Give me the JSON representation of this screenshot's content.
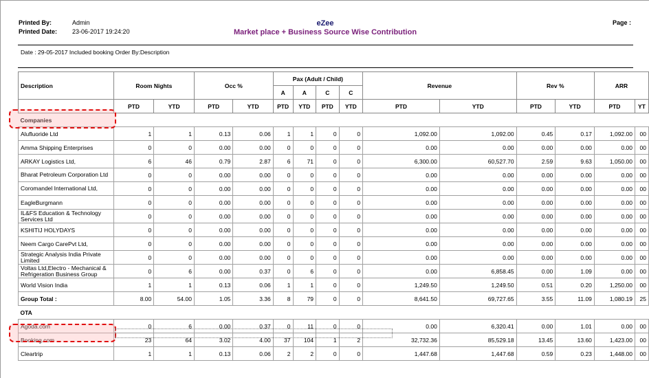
{
  "header": {
    "printed_by_label": "Printed By:",
    "printed_by": "Admin",
    "printed_date_label": "Printed Date:",
    "printed_date": "23-06-2017 19:24:20",
    "company": "eZee",
    "report_title": "Market place + Business Source Wise Contribution",
    "page_label": "Page :",
    "date_line": "Date : 29-05-2017 Included booking Order By:Description"
  },
  "table": {
    "pax_header": "Pax (Adult / Child)",
    "columns": {
      "description": "Description",
      "room_nights": "Room Nights",
      "occ": "Occ %",
      "a1": "A",
      "a2": "A",
      "c1": "C",
      "c2": "C",
      "revenue": "Revenue",
      "rev_pct": "Rev %",
      "arr": "ARR"
    },
    "sub": [
      "PTD",
      "YTD",
      "PTD",
      "YTD",
      "PTD",
      "YTD",
      "PTD",
      "YTD",
      "PTD",
      "YTD",
      "PTD",
      "YTD",
      "PTD",
      "YT"
    ],
    "sections": {
      "companies": "Companies",
      "ota": "OTA"
    },
    "companies_rows": [
      [
        "Alufluoride Ltd",
        "1",
        "1",
        "0.13",
        "0.06",
        "1",
        "1",
        "0",
        "0",
        "1,092.00",
        "1,092.00",
        "0.45",
        "0.17",
        "1,092.00",
        "00"
      ],
      [
        "Amma Shipping Enterprises",
        "0",
        "0",
        "0.00",
        "0.00",
        "0",
        "0",
        "0",
        "0",
        "0.00",
        "0.00",
        "0.00",
        "0.00",
        "0.00",
        "00"
      ],
      [
        "ARKAY Logistics Ltd,",
        "6",
        "46",
        "0.79",
        "2.87",
        "6",
        "71",
        "0",
        "0",
        "6,300.00",
        "60,527.70",
        "2.59",
        "9.63",
        "1,050.00",
        "00"
      ],
      [
        "Bharat Petroleum Corporation Ltd",
        "0",
        "0",
        "0.00",
        "0.00",
        "0",
        "0",
        "0",
        "0",
        "0.00",
        "0.00",
        "0.00",
        "0.00",
        "0.00",
        "00"
      ],
      [
        "Coromandel International Ltd,",
        "0",
        "0",
        "0.00",
        "0.00",
        "0",
        "0",
        "0",
        "0",
        "0.00",
        "0.00",
        "0.00",
        "0.00",
        "0.00",
        "00"
      ],
      [
        "EagleBurgmann",
        "0",
        "0",
        "0.00",
        "0.00",
        "0",
        "0",
        "0",
        "0",
        "0.00",
        "0.00",
        "0.00",
        "0.00",
        "0.00",
        "00"
      ],
      [
        "IL&FS Education & Technology Services Ltd",
        "0",
        "0",
        "0.00",
        "0.00",
        "0",
        "0",
        "0",
        "0",
        "0.00",
        "0.00",
        "0.00",
        "0.00",
        "0.00",
        "00"
      ],
      [
        "KSHITIJ HOLYDAYS",
        "0",
        "0",
        "0.00",
        "0.00",
        "0",
        "0",
        "0",
        "0",
        "0.00",
        "0.00",
        "0.00",
        "0.00",
        "0.00",
        "00"
      ],
      [
        "Neem Cargo CarePvt Ltd,",
        "0",
        "0",
        "0.00",
        "0.00",
        "0",
        "0",
        "0",
        "0",
        "0.00",
        "0.00",
        "0.00",
        "0.00",
        "0.00",
        "00"
      ],
      [
        "Strategic Analysis India Private Limited",
        "0",
        "0",
        "0.00",
        "0.00",
        "0",
        "0",
        "0",
        "0",
        "0.00",
        "0.00",
        "0.00",
        "0.00",
        "0.00",
        "00"
      ],
      [
        "Voltas Ltd,Electro - Mechanical & Refrigeration Business Group",
        "0",
        "6",
        "0.00",
        "0.37",
        "0",
        "6",
        "0",
        "0",
        "0.00",
        "6,858.45",
        "0.00",
        "1.09",
        "0.00",
        "00"
      ],
      [
        "World Vision India",
        "1",
        "1",
        "0.13",
        "0.06",
        "1",
        "1",
        "0",
        "0",
        "1,249.50",
        "1,249.50",
        "0.51",
        "0.20",
        "1,250.00",
        "00"
      ]
    ],
    "group_total": [
      "Group Total :",
      "8.00",
      "54.00",
      "1.05",
      "3.36",
      "8",
      "79",
      "0",
      "0",
      "8,641.50",
      "69,727.65",
      "3.55",
      "11.09",
      "1,080.19",
      "25"
    ],
    "ota_rows": [
      [
        "Agoda.com",
        "0",
        "6",
        "0.00",
        "0.37",
        "0",
        "11",
        "0",
        "0",
        "0.00",
        "6,320.41",
        "0.00",
        "1.01",
        "0.00",
        "00"
      ],
      [
        "Booking.com",
        "23",
        "64",
        "3.02",
        "4.00",
        "37",
        "104",
        "1",
        "2",
        "32,732.36",
        "85,529.18",
        "13.45",
        "13.60",
        "1,423.00",
        "00"
      ],
      [
        "Cleartrip",
        "1",
        "1",
        "0.13",
        "0.06",
        "2",
        "2",
        "0",
        "0",
        "1,447.68",
        "1,447.68",
        "0.59",
        "0.23",
        "1,448.00",
        "00"
      ]
    ]
  }
}
